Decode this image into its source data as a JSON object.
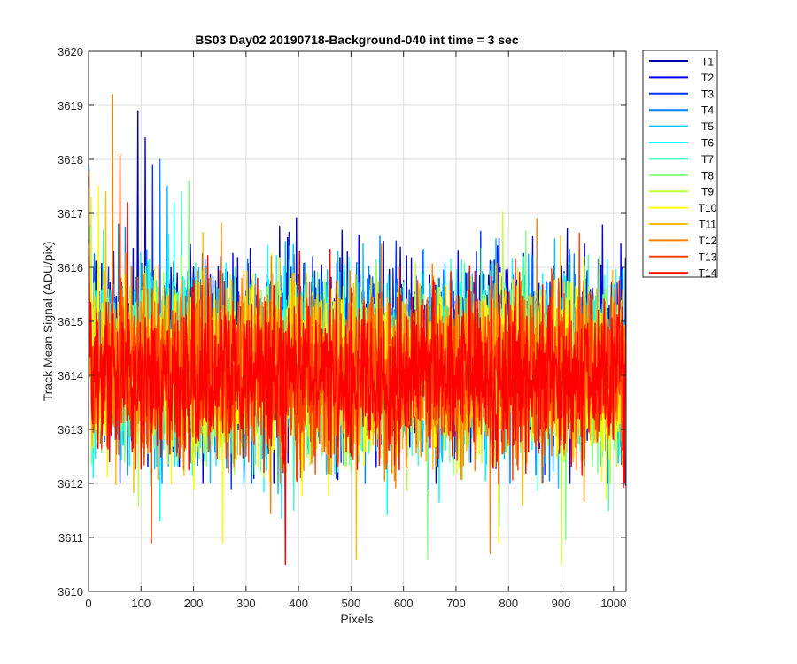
{
  "chart_data": {
    "type": "line",
    "title": "BS03 Day02 20190718-Background-040 int time = 3 sec",
    "xlabel": "Pixels",
    "ylabel": "Track Mean Signal (ADU/pix)",
    "xlim": [
      0,
      1024
    ],
    "ylim": [
      3610,
      3620
    ],
    "xticks": [
      0,
      100,
      200,
      300,
      400,
      500,
      600,
      700,
      800,
      900,
      1000
    ],
    "yticks": [
      3610,
      3611,
      3612,
      3613,
      3614,
      3615,
      3616,
      3617,
      3618,
      3619,
      3620
    ],
    "grid": true,
    "legend_position": "outside-top-right",
    "x_points": 1024,
    "series": [
      {
        "name": "T1",
        "color": "#0000b3",
        "mean": 3614.4,
        "spread": 1.05,
        "max": 3618.9,
        "min": 3612.0
      },
      {
        "name": "T2",
        "color": "#0000ff",
        "mean": 3614.4,
        "spread": 1.0,
        "max": 3618.4,
        "min": 3612.0
      },
      {
        "name": "T3",
        "color": "#0033ff",
        "mean": 3614.3,
        "spread": 1.0,
        "max": 3617.9,
        "min": 3611.9
      },
      {
        "name": "T4",
        "color": "#0080ff",
        "mean": 3614.3,
        "spread": 1.0,
        "max": 3618.0,
        "min": 3612.0
      },
      {
        "name": "T5",
        "color": "#00bfff",
        "mean": 3614.2,
        "spread": 1.0,
        "max": 3617.5,
        "min": 3611.2
      },
      {
        "name": "T6",
        "color": "#00ffff",
        "mean": 3614.2,
        "spread": 1.0,
        "max": 3617.2,
        "min": 3611.3
      },
      {
        "name": "T7",
        "color": "#40ffbf",
        "mean": 3614.2,
        "spread": 1.0,
        "max": 3617.4,
        "min": 3611.5
      },
      {
        "name": "T8",
        "color": "#80ff80",
        "mean": 3614.1,
        "spread": 1.0,
        "max": 3617.6,
        "min": 3610.6
      },
      {
        "name": "T9",
        "color": "#bfff40",
        "mean": 3614.0,
        "spread": 1.0,
        "max": 3617.3,
        "min": 3610.5
      },
      {
        "name": "T10",
        "color": "#ffff00",
        "mean": 3614.1,
        "spread": 1.0,
        "max": 3617.5,
        "min": 3610.9
      },
      {
        "name": "T11",
        "color": "#ffbf00",
        "mean": 3614.1,
        "spread": 1.0,
        "max": 3617.4,
        "min": 3610.6
      },
      {
        "name": "T12",
        "color": "#ff8000",
        "mean": 3614.1,
        "spread": 1.0,
        "max": 3619.2,
        "min": 3610.7
      },
      {
        "name": "T13",
        "color": "#ff4000",
        "mean": 3614.0,
        "spread": 1.0,
        "max": 3618.1,
        "min": 3610.9
      },
      {
        "name": "T14",
        "color": "#ff0000",
        "mean": 3614.0,
        "spread": 0.95,
        "max": 3617.2,
        "min": 3610.5
      }
    ]
  }
}
